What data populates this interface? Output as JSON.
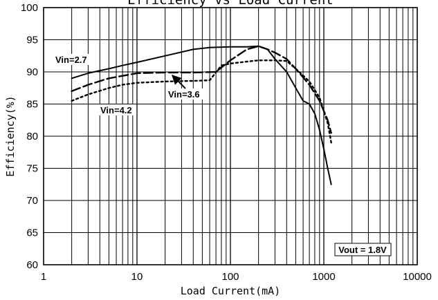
{
  "chart_data": {
    "type": "line",
    "title": "Efficiency vs Load Current",
    "xlabel": "Load Current(mA)",
    "ylabel": "Efficiency(%)",
    "x_scale": "log",
    "xlim": [
      1,
      10000
    ],
    "ylim": [
      60,
      100
    ],
    "x_ticks": [
      1,
      10,
      100,
      1000,
      10000
    ],
    "x_tick_labels": [
      "1",
      "10",
      "100",
      "1000",
      "10000"
    ],
    "y_ticks": [
      60,
      65,
      70,
      75,
      80,
      85,
      90,
      95,
      100
    ],
    "y_tick_labels": [
      "60",
      "65",
      "70",
      "75",
      "80",
      "85",
      "90",
      "95",
      "100"
    ],
    "grid": true,
    "series": [
      {
        "name": "Vin=2.7",
        "style": "solid",
        "x": [
          2,
          3,
          5,
          7,
          10,
          20,
          40,
          60,
          100,
          150,
          200,
          250,
          300,
          400,
          500,
          600,
          700,
          800,
          900,
          1000,
          1100,
          1200
        ],
        "y": [
          89.0,
          89.8,
          90.5,
          91.0,
          91.5,
          92.5,
          93.5,
          93.8,
          93.9,
          93.9,
          94.0,
          93.5,
          92.0,
          90.0,
          87.5,
          85.5,
          85.0,
          83.5,
          81.0,
          78.0,
          75.0,
          72.5
        ]
      },
      {
        "name": "Vin=3.6",
        "style": "dashed",
        "x": [
          2,
          3,
          5,
          10,
          20,
          40,
          70,
          100,
          150,
          200,
          250,
          300,
          400,
          500,
          700,
          900,
          1100,
          1200
        ],
        "y": [
          87.0,
          88.0,
          89.0,
          89.8,
          89.9,
          89.9,
          90.0,
          91.8,
          93.5,
          94.0,
          93.5,
          93.0,
          92.0,
          90.5,
          88.0,
          85.5,
          82.5,
          80.5
        ]
      },
      {
        "name": "Vin=4.2",
        "style": "dotted",
        "x": [
          2,
          3,
          5,
          7,
          10,
          20,
          40,
          60,
          80,
          100,
          150,
          200,
          300,
          400,
          500,
          700,
          900,
          1100,
          1200
        ],
        "y": [
          85.5,
          86.5,
          87.5,
          88.0,
          88.3,
          88.5,
          88.6,
          88.7,
          91.0,
          91.3,
          91.6,
          91.8,
          91.8,
          91.7,
          90.5,
          88.5,
          86.0,
          82.0,
          79.0
        ]
      }
    ],
    "annotations": [
      {
        "text": "Vin=2.7"
      },
      {
        "text": "Vin=3.6",
        "arrow": true
      },
      {
        "text": "Vin=4.2"
      },
      {
        "text": "Vout = 1.8V",
        "boxed": true
      }
    ]
  }
}
